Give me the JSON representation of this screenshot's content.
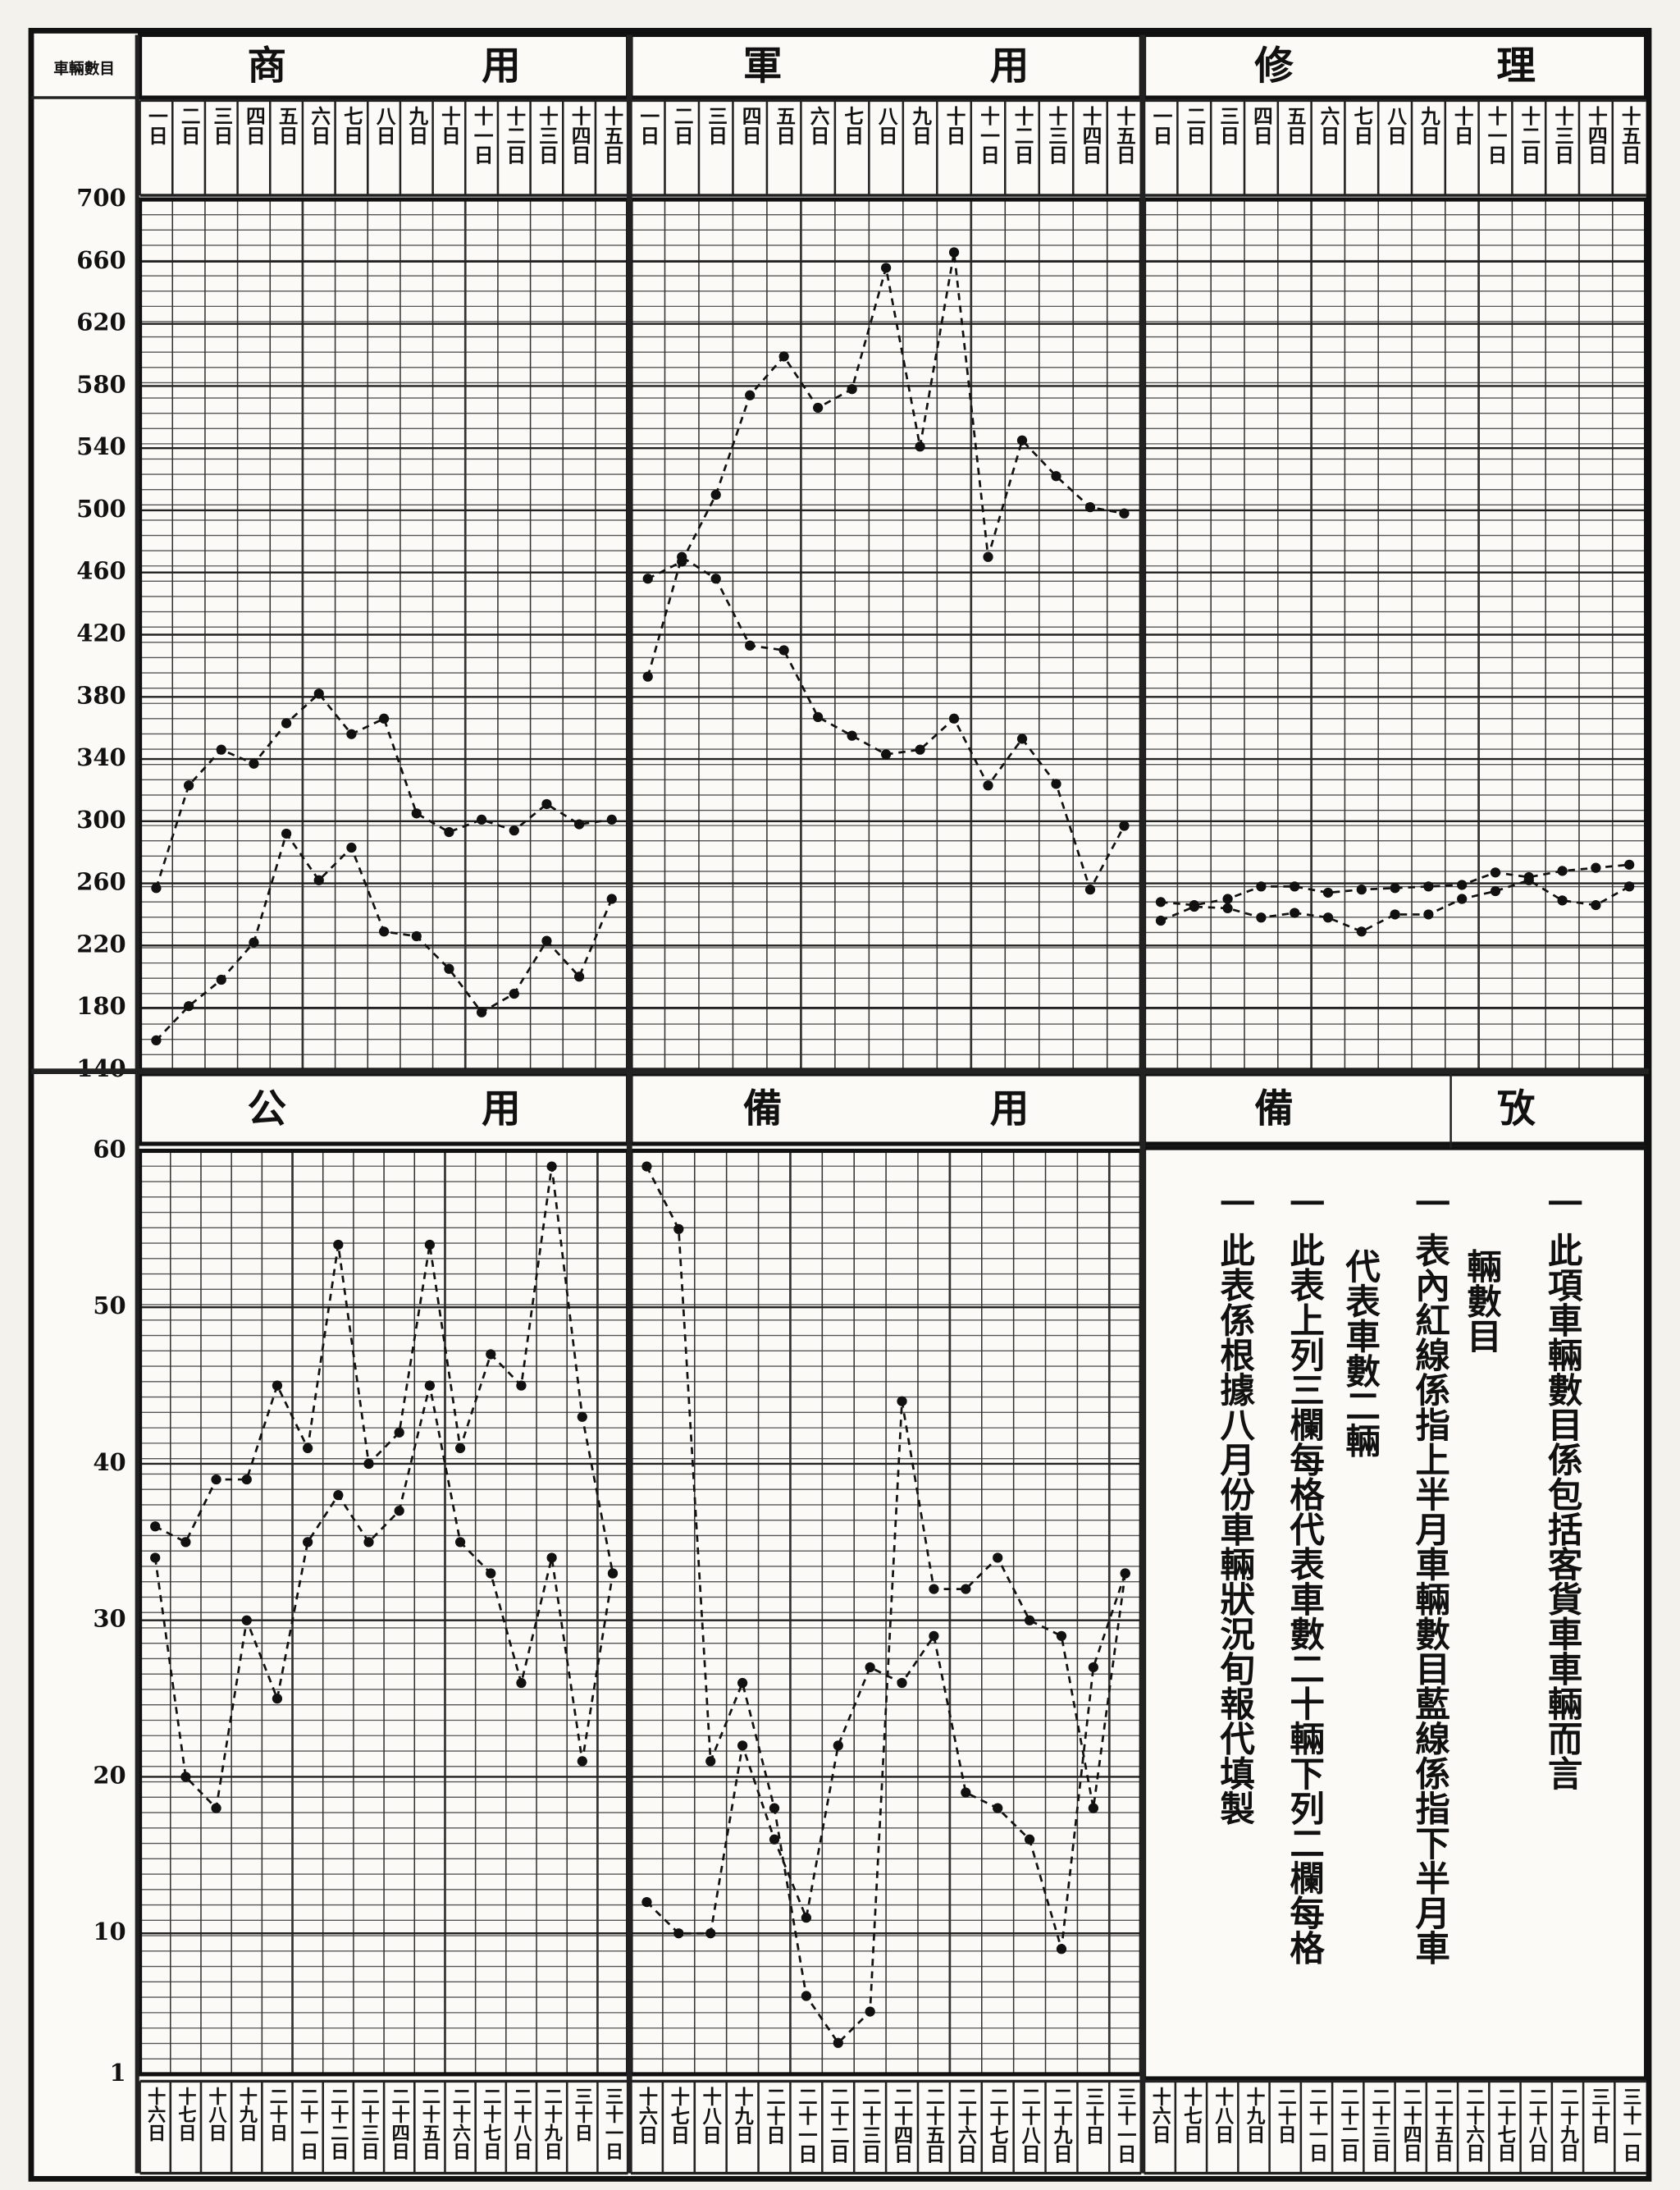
{
  "y_label": "車輛數目",
  "chart_data": [
    {
      "type": "line",
      "title": "商用",
      "categories": [
        "一日",
        "二日",
        "三日",
        "四日",
        "五日",
        "六日",
        "七日",
        "八日",
        "九日",
        "十日",
        "十一日",
        "十二日",
        "十三日",
        "十四日",
        "十五日"
      ],
      "series": [
        {
          "color": "#111111",
          "values": [
            257,
            323,
            346,
            337,
            363,
            382,
            356,
            366,
            305,
            293,
            301,
            294,
            311,
            298,
            301
          ]
        },
        {
          "color": "#111111",
          "values": [
            159,
            181,
            198,
            222,
            292,
            262,
            283,
            229,
            226,
            205,
            177,
            189,
            223,
            200,
            250
          ]
        }
      ],
      "ylim": [
        140,
        700
      ],
      "yticks": [
        140,
        180,
        220,
        260,
        300,
        340,
        380,
        420,
        460,
        500,
        540,
        580,
        620,
        660,
        700
      ],
      "grid": true
    },
    {
      "type": "line",
      "title": "軍用",
      "categories": [
        "一日",
        "二日",
        "三日",
        "四日",
        "五日",
        "六日",
        "七日",
        "八日",
        "九日",
        "十日",
        "十一日",
        "十二日",
        "十三日",
        "十四日",
        "十五日"
      ],
      "series": [
        {
          "color": "#111111",
          "values": [
            456,
            467,
            510,
            574,
            599,
            566,
            578,
            656,
            541,
            666,
            470,
            545,
            522,
            502,
            498
          ]
        },
        {
          "color": "#111111",
          "values": [
            393,
            470,
            456,
            413,
            410,
            367,
            355,
            343,
            346,
            366,
            323,
            353,
            324,
            256,
            297
          ]
        }
      ],
      "ylim": [
        140,
        700
      ],
      "yticks": [
        140,
        180,
        220,
        260,
        300,
        340,
        380,
        420,
        460,
        500,
        540,
        580,
        620,
        660,
        700
      ],
      "grid": true
    },
    {
      "type": "line",
      "title": "修理",
      "categories": [
        "一日",
        "二日",
        "三日",
        "四日",
        "五日",
        "六日",
        "七日",
        "八日",
        "九日",
        "十日",
        "十一日",
        "十二日",
        "十三日",
        "十四日",
        "十五日"
      ],
      "series": [
        {
          "color": "#111111",
          "values": [
            248,
            246,
            250,
            258,
            258,
            254,
            256,
            257,
            258,
            259,
            267,
            264,
            268,
            270,
            272
          ]
        },
        {
          "color": "#111111",
          "values": [
            236,
            245,
            244,
            238,
            241,
            238,
            229,
            240,
            240,
            250,
            255,
            262,
            249,
            246,
            258
          ]
        }
      ],
      "ylim": [
        140,
        700
      ],
      "yticks": [
        140,
        180,
        220,
        260,
        300,
        340,
        380,
        420,
        460,
        500,
        540,
        580,
        620,
        660,
        700
      ],
      "grid": true
    },
    {
      "type": "line",
      "title": "公用",
      "categories": [
        "十六日",
        "十七日",
        "十八日",
        "十九日",
        "二十日",
        "二十一日",
        "二十二日",
        "二十三日",
        "二十四日",
        "二十五日",
        "二十六日",
        "二十七日",
        "二十八日",
        "二十九日",
        "三十日",
        "三十一日"
      ],
      "series": [
        {
          "color": "#111111",
          "values": [
            36,
            35,
            39,
            39,
            45,
            41,
            54,
            40,
            42,
            54,
            41,
            47,
            45,
            59,
            43,
            33
          ]
        },
        {
          "color": "#111111",
          "values": [
            34,
            20,
            18,
            30,
            25,
            35,
            38,
            35,
            37,
            45,
            35,
            33,
            26,
            34,
            21,
            33
          ]
        }
      ],
      "ylim": [
        1,
        60
      ],
      "yticks": [
        1,
        10,
        20,
        30,
        40,
        50,
        60
      ],
      "grid": true
    },
    {
      "type": "line",
      "title": "備用",
      "categories": [
        "十六日",
        "十七日",
        "十八日",
        "十九日",
        "二十日",
        "二十一日",
        "二十二日",
        "二十三日",
        "二十四日",
        "二十五日",
        "二十六日",
        "二十七日",
        "二十八日",
        "二十九日",
        "三十日",
        "三十一日"
      ],
      "series": [
        {
          "color": "#111111",
          "values": [
            59,
            55,
            21,
            26,
            18,
            6,
            3,
            5,
            44,
            32,
            32,
            34,
            30,
            29,
            18,
            33
          ]
        },
        {
          "color": "#111111",
          "values": [
            12,
            10,
            10,
            22,
            16,
            11,
            22,
            27,
            26,
            29,
            19,
            18,
            16,
            9,
            27,
            33
          ]
        }
      ],
      "ylim": [
        1,
        60
      ],
      "yticks": [
        1,
        10,
        20,
        30,
        40,
        50,
        60
      ],
      "grid": true
    }
  ],
  "notes": {
    "title": "備攷",
    "columns": [
      "一 此項車輛數目係包括客貨車車輛而言",
      "輛數目",
      "一 表內紅線係指上半月車輛數目藍線係指下半月車",
      "代表車數二輛",
      "一 此表上列三欄每格代表車數二十輛下列二欄每格",
      "一 此表係根據八月份車輛狀況旬報代填製"
    ],
    "day_labels": [
      "十六日",
      "十七日",
      "十八日",
      "十九日",
      "二十日",
      "二十一日",
      "二十二日",
      "二十三日",
      "二十四日",
      "二十五日",
      "二十六日",
      "二十七日",
      "二十八日",
      "二十九日",
      "三十日",
      "三十一日"
    ]
  }
}
